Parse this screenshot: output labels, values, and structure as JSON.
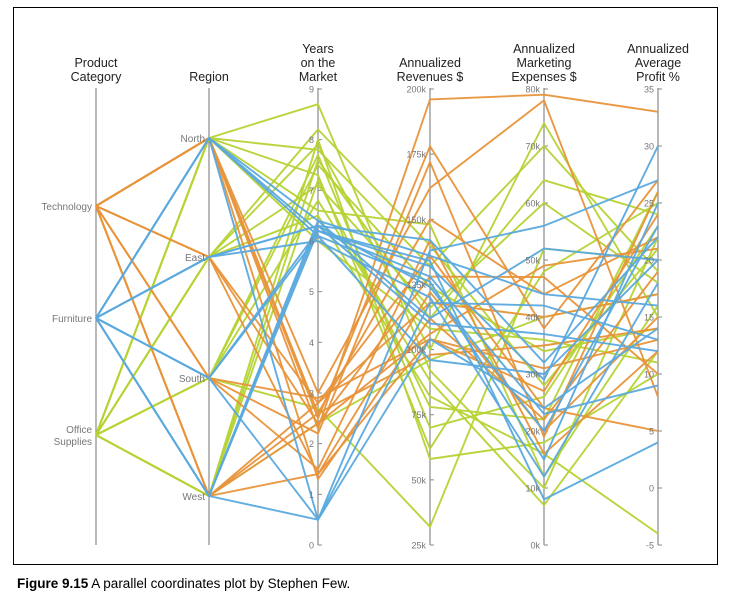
{
  "chart_data": {
    "type": "parallel-coordinates",
    "title": "",
    "axes": [
      {
        "label": [
          "Product",
          "Category"
        ],
        "kind": "categorical",
        "ticks": [
          "Technology",
          "Furniture",
          "Office Supplies"
        ]
      },
      {
        "label": [
          "Region"
        ],
        "kind": "categorical",
        "ticks": [
          "North",
          "East",
          "South",
          "West"
        ]
      },
      {
        "label": [
          "Years",
          "on the",
          "Market"
        ],
        "kind": "numeric",
        "range": [
          0,
          9
        ],
        "ticks": [
          "0",
          "1",
          "2",
          "3",
          "4",
          "5",
          "6",
          "7",
          "8",
          "9"
        ]
      },
      {
        "label": [
          "Annualized",
          "Revenues $"
        ],
        "kind": "numeric",
        "range": [
          25000,
          200000
        ],
        "ticks": [
          "25k",
          "50k",
          "75k",
          "100k",
          "125k",
          "150k",
          "175k",
          "200k"
        ]
      },
      {
        "label": [
          "Annualized",
          "Marketing",
          "Expenses $"
        ],
        "kind": "numeric",
        "range": [
          0,
          80000
        ],
        "ticks": [
          "0k",
          "10k",
          "20k",
          "30k",
          "40k",
          "50k",
          "60k",
          "70k",
          "80k"
        ]
      },
      {
        "label": [
          "Annualized",
          "Average",
          "Profit %"
        ],
        "kind": "numeric",
        "range": [
          -5,
          35
        ],
        "ticks": [
          "-5",
          "0",
          "5",
          "10",
          "15",
          "20",
          "25",
          "30",
          "35"
        ]
      }
    ],
    "colors": {
      "Technology": "#e8943a",
      "Furniture": "#5aa9de",
      "Office Supplies": "#b5d334"
    },
    "records": [
      {
        "category": "Technology",
        "region": "North",
        "years": 2.3,
        "revenue": 196000,
        "expenses": 79000,
        "profit": 33
      },
      {
        "category": "Technology",
        "region": "North",
        "years": 2.5,
        "revenue": 178000,
        "expenses": 38000,
        "profit": 27
      },
      {
        "category": "Technology",
        "region": "North",
        "years": 1.3,
        "revenue": 112000,
        "expenses": 22000,
        "profit": 19
      },
      {
        "category": "Technology",
        "region": "North",
        "years": 2.6,
        "revenue": 98000,
        "expenses": 35000,
        "profit": 14
      },
      {
        "category": "Technology",
        "region": "East",
        "years": 1.4,
        "revenue": 104000,
        "expenses": 27000,
        "profit": 24
      },
      {
        "category": "Technology",
        "region": "East",
        "years": 2.4,
        "revenue": 128000,
        "expenses": 47000,
        "profit": 10
      },
      {
        "category": "Technology",
        "region": "East",
        "years": 2.8,
        "revenue": 118000,
        "expenses": 40000,
        "profit": 17
      },
      {
        "category": "Technology",
        "region": "South",
        "years": 2.9,
        "revenue": 104000,
        "expenses": 31000,
        "profit": 13
      },
      {
        "category": "Technology",
        "region": "South",
        "years": 2.2,
        "revenue": 172000,
        "expenses": 19000,
        "profit": 26
      },
      {
        "category": "Technology",
        "region": "South",
        "years": 1.5,
        "revenue": 142000,
        "expenses": 16000,
        "profit": 12
      },
      {
        "category": "Technology",
        "region": "West",
        "years": 2.6,
        "revenue": 150000,
        "expenses": 44000,
        "profit": 22
      },
      {
        "category": "Technology",
        "region": "West",
        "years": 1.4,
        "revenue": 122000,
        "expenses": 20000,
        "profit": 15
      },
      {
        "category": "Technology",
        "region": "West",
        "years": 2.4,
        "revenue": 106000,
        "expenses": 49000,
        "profit": 21
      },
      {
        "category": "Technology",
        "region": "West",
        "years": 2.8,
        "revenue": 136000,
        "expenses": 24000,
        "profit": 5
      },
      {
        "category": "Technology",
        "region": "North",
        "years": 3.0,
        "revenue": 162000,
        "expenses": 78000,
        "profit": 8
      },
      {
        "category": "Furniture",
        "region": "North",
        "years": 6.2,
        "revenue": 132000,
        "expenses": 29000,
        "profit": 30
      },
      {
        "category": "Furniture",
        "region": "North",
        "years": 6.4,
        "revenue": 112000,
        "expenses": 52000,
        "profit": 20
      },
      {
        "category": "Furniture",
        "region": "North",
        "years": 6.1,
        "revenue": 126000,
        "expenses": 15000,
        "profit": 25
      },
      {
        "category": "Furniture",
        "region": "North",
        "years": 0.5,
        "revenue": 104000,
        "expenses": 24000,
        "profit": 14
      },
      {
        "category": "Furniture",
        "region": "East",
        "years": 6.3,
        "revenue": 142000,
        "expenses": 32000,
        "profit": 22
      },
      {
        "category": "Furniture",
        "region": "East",
        "years": 6.0,
        "revenue": 120000,
        "expenses": 12000,
        "profit": 18
      },
      {
        "category": "Furniture",
        "region": "East",
        "years": 6.3,
        "revenue": 110000,
        "expenses": 37000,
        "profit": 12
      },
      {
        "category": "Furniture",
        "region": "South",
        "years": 6.2,
        "revenue": 128000,
        "expenses": 23000,
        "profit": 9
      },
      {
        "category": "Furniture",
        "region": "South",
        "years": 0.5,
        "revenue": 138000,
        "expenses": 56000,
        "profit": 27
      },
      {
        "category": "Furniture",
        "region": "South",
        "years": 6.1,
        "revenue": 96000,
        "expenses": 30000,
        "profit": 20
      },
      {
        "category": "Furniture",
        "region": "West",
        "years": 0.5,
        "revenue": 118000,
        "expenses": 42000,
        "profit": 13
      },
      {
        "category": "Furniture",
        "region": "West",
        "years": 6.2,
        "revenue": 134000,
        "expenses": 8000,
        "profit": 4
      },
      {
        "category": "Furniture",
        "region": "West",
        "years": 6.3,
        "revenue": 124000,
        "expenses": 20000,
        "profit": 23
      },
      {
        "category": "Furniture",
        "region": "West",
        "years": 6.4,
        "revenue": 136000,
        "expenses": 44000,
        "profit": 16
      },
      {
        "category": "Office Supplies",
        "region": "North",
        "years": 8.7,
        "revenue": 92000,
        "expenses": 10000,
        "profit": 22
      },
      {
        "category": "Office Supplies",
        "region": "North",
        "years": 7.8,
        "revenue": 132000,
        "expenses": 70000,
        "profit": 19
      },
      {
        "category": "Office Supplies",
        "region": "North",
        "years": 6.0,
        "revenue": 108000,
        "expenses": 36000,
        "profit": 11
      },
      {
        "category": "Office Supplies",
        "region": "North",
        "years": 7.3,
        "revenue": 62000,
        "expenses": 48000,
        "profit": 25
      },
      {
        "category": "Office Supplies",
        "region": "East",
        "years": 7.9,
        "revenue": 100000,
        "expenses": 74000,
        "profit": 15
      },
      {
        "category": "Office Supplies",
        "region": "East",
        "years": 8.2,
        "revenue": 140000,
        "expenses": 28000,
        "profit": 21
      },
      {
        "category": "Office Supplies",
        "region": "East",
        "years": 6.5,
        "revenue": 82000,
        "expenses": 16000,
        "profit": -4
      },
      {
        "category": "Office Supplies",
        "region": "East",
        "years": 7.1,
        "revenue": 116000,
        "expenses": 60000,
        "profit": 18
      },
      {
        "category": "Office Supplies",
        "region": "South",
        "years": 7.7,
        "revenue": 70000,
        "expenses": 26000,
        "profit": 23
      },
      {
        "category": "Office Supplies",
        "region": "South",
        "years": 7.5,
        "revenue": 124000,
        "expenses": 34000,
        "profit": 14
      },
      {
        "category": "Office Supplies",
        "region": "South",
        "years": 2.7,
        "revenue": 32000,
        "expenses": 52000,
        "profit": 20
      },
      {
        "category": "Office Supplies",
        "region": "South",
        "years": 6.8,
        "revenue": 88000,
        "expenses": 7000,
        "profit": 12
      },
      {
        "category": "Office Supplies",
        "region": "West",
        "years": 7.6,
        "revenue": 112000,
        "expenses": 64000,
        "profit": 24
      },
      {
        "category": "Office Supplies",
        "region": "West",
        "years": 2.4,
        "revenue": 96000,
        "expenses": 40000,
        "profit": 17
      },
      {
        "category": "Office Supplies",
        "region": "West",
        "years": 8.0,
        "revenue": 58000,
        "expenses": 18000,
        "profit": 10
      },
      {
        "category": "Office Supplies",
        "region": "West",
        "years": 7.2,
        "revenue": 78000,
        "expenses": 22000,
        "profit": 26
      },
      {
        "category": "Office Supplies",
        "region": "North",
        "years": 6.6,
        "revenue": 148000,
        "expenses": 12000,
        "profit": 16
      }
    ]
  },
  "caption": {
    "label": "Figure 9.15",
    "text": " A parallel coordinates plot by Stephen Few."
  }
}
